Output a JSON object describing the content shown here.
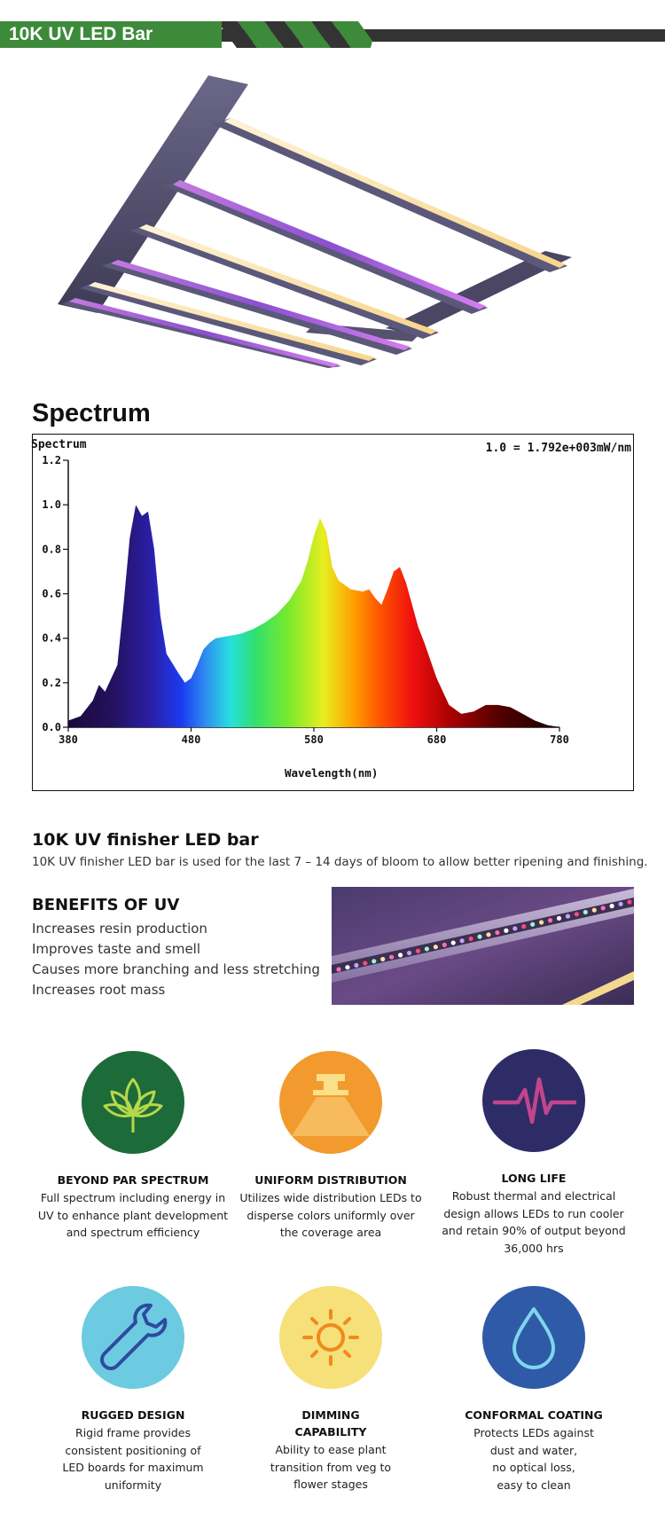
{
  "header": {
    "title": "10K UV LED Bar"
  },
  "colors": {
    "brand_green": "#3d8a3a",
    "dark_gray": "#333333"
  },
  "spectrum": {
    "heading": "Spectrum",
    "chart_label": "Spectrum",
    "scale_note": "1.0 = 1.792e+003mW/nm"
  },
  "chart_data": {
    "type": "area",
    "title": "Spectrum",
    "xlabel": "Wavelength(nm)",
    "ylabel": "",
    "xlim": [
      380,
      780
    ],
    "ylim": [
      0,
      1.2
    ],
    "x_ticks": [
      "380",
      "480",
      "580",
      "680",
      "780"
    ],
    "y_ticks": [
      "0.0",
      "0.2",
      "0.4",
      "0.6",
      "0.8",
      "1.0",
      "1.2"
    ],
    "grid": false,
    "series": [
      {
        "x": [
          380,
          390,
          400,
          405,
          410,
          420,
          425,
          430,
          435,
          440,
          445,
          450,
          455,
          460,
          470,
          475,
          480,
          485,
          490,
          495,
          500,
          510,
          520,
          530,
          540,
          550,
          560,
          570,
          575,
          580,
          585,
          590,
          595,
          600,
          605,
          610,
          620,
          625,
          630,
          635,
          640,
          645,
          650,
          655,
          660,
          665,
          670,
          680,
          690,
          700,
          710,
          720,
          730,
          740,
          750,
          760,
          770,
          780
        ],
        "values": [
          0.03,
          0.05,
          0.12,
          0.19,
          0.16,
          0.28,
          0.55,
          0.85,
          1.0,
          0.95,
          0.97,
          0.8,
          0.5,
          0.33,
          0.24,
          0.2,
          0.22,
          0.28,
          0.35,
          0.38,
          0.4,
          0.41,
          0.42,
          0.44,
          0.47,
          0.51,
          0.57,
          0.66,
          0.75,
          0.86,
          0.94,
          0.88,
          0.72,
          0.66,
          0.64,
          0.62,
          0.61,
          0.62,
          0.58,
          0.55,
          0.62,
          0.7,
          0.72,
          0.65,
          0.55,
          0.45,
          0.38,
          0.22,
          0.1,
          0.06,
          0.07,
          0.1,
          0.1,
          0.09,
          0.06,
          0.03,
          0.01,
          0.0
        ]
      }
    ]
  },
  "finisher": {
    "title": "10K  UV finisher LED bar",
    "description": "10K  UV finisher LED bar is used for the last 7 – 14 days of bloom to allow better ripening and finishing."
  },
  "benefits": {
    "title": "BENEFITS OF UV",
    "items": [
      "Increases resin production",
      "Improves taste and smell",
      "Causes more branching and less stretching",
      "Increases root mass"
    ]
  },
  "features": [
    {
      "icon": "leaf-icon",
      "color": "#1e6b3a",
      "title": "BEYOND PAR SPECTRUM",
      "desc": [
        "Full spectrum including energy in",
        "UV to enhance plant development",
        "and spectrum efficiency"
      ]
    },
    {
      "icon": "ceiling-light-icon",
      "color": "#f29a2e",
      "title": "UNIFORM DISTRIBUTION",
      "desc": [
        "Utilizes wide distribution LEDs to",
        "disperse colors uniformly over",
        "the coverage area"
      ]
    },
    {
      "icon": "pulse-icon",
      "color": "#2e2c66",
      "title": "LONG LIFE",
      "desc": [
        "Robust thermal and electrical",
        "design allows LEDs to run cooler",
        "and retain 90% of output beyond",
        "36,000 hrs"
      ]
    },
    {
      "icon": "wrench-icon",
      "color": "#6ccbe0",
      "title": "RUGGED DESIGN",
      "desc": [
        "Rigid frame provides",
        "consistent positioning of",
        "LED boards for maximum",
        "uniformity"
      ]
    },
    {
      "icon": "sun-icon",
      "color": "#f6e079",
      "title": "DIMMING\nCAPABILITY",
      "desc": [
        "Ability to ease plant",
        "transition from veg to",
        "flower stages"
      ]
    },
    {
      "icon": "water-drop-icon",
      "color": "#2f5aa8",
      "title": "CONFORMAL COATING",
      "desc": [
        "Protects LEDs against",
        "dust and water,",
        "no optical loss,",
        "easy to clean"
      ]
    }
  ]
}
